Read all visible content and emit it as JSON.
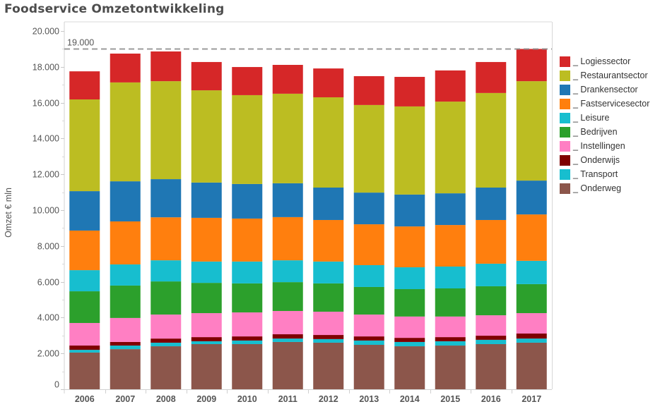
{
  "chart_data": {
    "type": "bar",
    "stacked": true,
    "title": "Foodservice Omzetontwikkeling",
    "xlabel": "",
    "ylabel": "Omzet € mln",
    "ylim": [
      0,
      20000
    ],
    "yticks": [
      0,
      2000,
      4000,
      6000,
      8000,
      10000,
      12000,
      14000,
      16000,
      18000,
      20000
    ],
    "ytick_labels": [
      "0",
      "2.000",
      "4.000",
      "6.000",
      "8.000",
      "10.000",
      "12.000",
      "14.000",
      "16.000",
      "18.000",
      "20.000"
    ],
    "grid": false,
    "legend_position": "right",
    "reference_line": {
      "value": 19000,
      "label": "19.000",
      "style": "dashed"
    },
    "categories": [
      "2006",
      "2007",
      "2008",
      "2009",
      "2010",
      "2011",
      "2012",
      "2013",
      "2014",
      "2015",
      "2016",
      "2017"
    ],
    "series": [
      {
        "name": "_ Onderweg",
        "color": "#8c564b",
        "values": [
          2050,
          2240,
          2400,
          2520,
          2520,
          2640,
          2600,
          2480,
          2400,
          2440,
          2520,
          2600
        ]
      },
      {
        "name": "_ Transport",
        "color": "#17becf",
        "values": [
          150,
          200,
          200,
          160,
          200,
          190,
          200,
          240,
          240,
          240,
          240,
          230
        ]
      },
      {
        "name": "_ Onderwijs",
        "color": "#7f0000",
        "values": [
          240,
          200,
          230,
          230,
          230,
          240,
          230,
          230,
          230,
          230,
          230,
          280
        ]
      },
      {
        "name": "_ Instellingen",
        "color": "#ff7fc3",
        "values": [
          1260,
          1340,
          1340,
          1340,
          1340,
          1300,
          1300,
          1220,
          1190,
          1150,
          1140,
          1140
        ]
      },
      {
        "name": "_ Bedrijven",
        "color": "#2ca02c",
        "values": [
          1770,
          1810,
          1850,
          1690,
          1620,
          1610,
          1580,
          1540,
          1530,
          1570,
          1620,
          1620
        ]
      },
      {
        "name": "_ Leisure",
        "color": "#17becf",
        "values": [
          1180,
          1180,
          1180,
          1190,
          1220,
          1220,
          1220,
          1220,
          1220,
          1220,
          1260,
          1300
        ]
      },
      {
        "name": "_ Fastservicesector",
        "color": "#ff7f0e",
        "values": [
          2210,
          2400,
          2400,
          2440,
          2400,
          2410,
          2320,
          2280,
          2280,
          2320,
          2440,
          2590
        ]
      },
      {
        "name": "_ Drankensector",
        "color": "#1f77b4",
        "values": [
          2200,
          2240,
          2130,
          1970,
          1930,
          1890,
          1810,
          1770,
          1780,
          1770,
          1810,
          1890
        ]
      },
      {
        "name": "_ Restaurantsector",
        "color": "#bcbd22",
        "values": [
          5120,
          5520,
          5470,
          5150,
          4960,
          5000,
          5040,
          4890,
          4920,
          5120,
          5280,
          5550
        ]
      },
      {
        "name": "_ Logiessector",
        "color": "#d62728",
        "values": [
          1570,
          1610,
          1660,
          1580,
          1570,
          1610,
          1610,
          1610,
          1650,
          1740,
          1730,
          1800
        ]
      }
    ],
    "legend_order": [
      "_ Logiessector",
      "_ Restaurantsector",
      "_ Drankensector",
      "_ Fastservicesector",
      "_ Leisure",
      "_ Bedrijven",
      "_ Instellingen",
      "_ Onderwijs",
      "_ Transport",
      "_ Onderweg"
    ]
  }
}
